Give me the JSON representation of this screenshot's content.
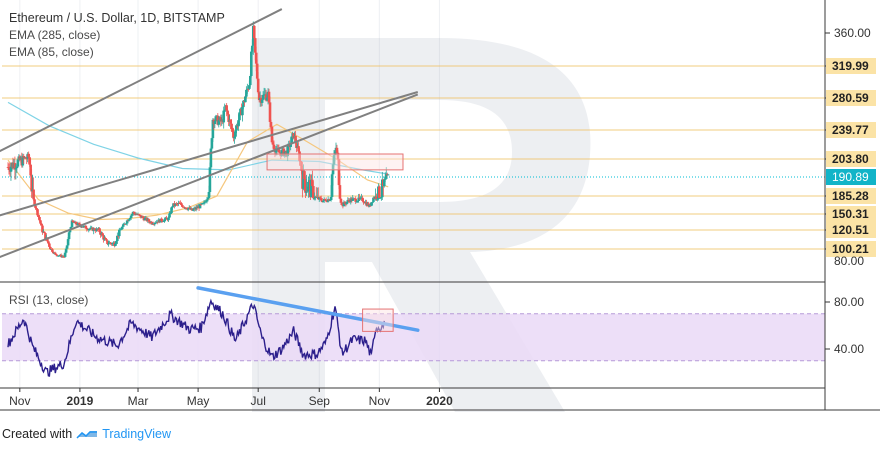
{
  "header": {
    "title": "Ethereum / U.S. Dollar, 1D, BITSTAMP",
    "ema_long": "EMA (285, close)",
    "ema_short": "EMA (85, close)"
  },
  "rsi_label": "RSI (13, close)",
  "footer": {
    "created_with": "Created with",
    "brand": "TradingView"
  },
  "colors": {
    "up": "#26a69a",
    "down": "#ef5350",
    "ema_long": "#7fd3e6",
    "ema_short": "#f5c77e",
    "channel": "#808080",
    "level": "#f0c060",
    "trendline": "#5aa0f0",
    "rsi_line": "#2c1f8c",
    "rsi_band": "#ead9f7",
    "current_price": "#00bcd4",
    "target_box": "#e57373"
  },
  "chart_data": {
    "type": "candlestick",
    "price_scale": {
      "ylim": [
        75,
        385
      ],
      "ticks": [
        360.0,
        80.0
      ]
    },
    "horizontal_levels": [
      "319.99",
      "280.59",
      "239.77",
      "203.80",
      "185.28",
      "150.31",
      "120.51",
      "100.21"
    ],
    "current_price": "190.89",
    "x_ticks": [
      "Nov",
      "2019",
      "Mar",
      "May",
      "Jul",
      "Sep",
      "Nov",
      "2020"
    ],
    "x_start": "2018-10-20",
    "ema_long_path": [
      [
        "2018-10-20",
        275
      ],
      [
        "2018-12-01",
        245
      ],
      [
        "2019-01-15",
        222
      ],
      [
        "2019-03-01",
        205
      ],
      [
        "2019-04-15",
        197
      ],
      [
        "2019-06-01",
        196
      ],
      [
        "2019-07-15",
        203
      ],
      [
        "2019-09-01",
        202
      ],
      [
        "2019-10-15",
        196
      ],
      [
        "2019-11-10",
        193
      ]
    ],
    "ema_short_path": [
      [
        "2018-10-20",
        203
      ],
      [
        "2018-11-20",
        178
      ],
      [
        "2018-12-20",
        152
      ],
      [
        "2019-01-20",
        140
      ],
      [
        "2019-02-20",
        142
      ],
      [
        "2019-03-20",
        148
      ],
      [
        "2019-04-20",
        162
      ],
      [
        "2019-05-20",
        185
      ],
      [
        "2019-06-20",
        225
      ],
      [
        "2019-07-20",
        247
      ],
      [
        "2019-08-20",
        225
      ],
      [
        "2019-09-20",
        203
      ],
      [
        "2019-10-20",
        190
      ],
      [
        "2019-11-10",
        188
      ]
    ],
    "channel_upper": [
      [
        "2018-10-01",
        207
      ],
      [
        "2019-07-25",
        389
      ]
    ],
    "channel_lower": [
      [
        "2018-10-01",
        78
      ],
      [
        "2019-12-10",
        285
      ]
    ],
    "channel_mid": [
      [
        "2018-10-01",
        142
      ],
      [
        "2019-12-10",
        288
      ]
    ],
    "target_box": {
      "from": "2019-07-10",
      "to": "2019-11-25",
      "low": 196,
      "high": 210
    },
    "anchors": [
      [
        "2018-10-20",
        198
      ],
      [
        "2018-11-10",
        206
      ],
      [
        "2018-11-14",
        183
      ],
      [
        "2018-11-24",
        120
      ],
      [
        "2018-12-07",
        90
      ],
      [
        "2018-12-16",
        86
      ],
      [
        "2018-12-24",
        135
      ],
      [
        "2019-01-10",
        123
      ],
      [
        "2019-01-20",
        121
      ],
      [
        "2019-01-28",
        107
      ],
      [
        "2019-02-05",
        106
      ],
      [
        "2019-02-24",
        153
      ],
      [
        "2019-03-15",
        134
      ],
      [
        "2019-04-01",
        142
      ],
      [
        "2019-04-05",
        167
      ],
      [
        "2019-04-12",
        170
      ],
      [
        "2019-04-25",
        157
      ],
      [
        "2019-05-07",
        170
      ],
      [
        "2019-05-13",
        194
      ],
      [
        "2019-05-16",
        254
      ],
      [
        "2019-05-25",
        250
      ],
      [
        "2019-05-29",
        268
      ],
      [
        "2019-06-06",
        232
      ],
      [
        "2019-06-14",
        265
      ],
      [
        "2019-06-22",
        300
      ],
      [
        "2019-06-26",
        360
      ],
      [
        "2019-07-02",
        280
      ],
      [
        "2019-07-11",
        285
      ],
      [
        "2019-07-15",
        225
      ],
      [
        "2019-07-20",
        212
      ],
      [
        "2019-07-30",
        212
      ],
      [
        "2019-08-06",
        234
      ],
      [
        "2019-08-15",
        192
      ],
      [
        "2019-08-25",
        185
      ],
      [
        "2019-09-05",
        176
      ],
      [
        "2019-09-12",
        180
      ],
      [
        "2019-09-18",
        218
      ],
      [
        "2019-09-24",
        167
      ],
      [
        "2019-10-02",
        178
      ],
      [
        "2019-10-15",
        178
      ],
      [
        "2019-10-22",
        165
      ],
      [
        "2019-10-26",
        182
      ],
      [
        "2019-11-03",
        185
      ],
      [
        "2019-11-10",
        190
      ]
    ],
    "rsi": {
      "ylim": [
        10,
        100
      ],
      "ticks": [
        "80.00",
        "40.00"
      ],
      "band": [
        30,
        70
      ],
      "trendline": [
        [
          "2019-05-01",
          92
        ],
        [
          "2019-12-10",
          56
        ]
      ],
      "target_box": {
        "from": "2019-10-15",
        "to": "2019-11-15",
        "low": 55,
        "high": 74
      },
      "anchors": [
        [
          "2018-10-20",
          44
        ],
        [
          "2018-11-05",
          66
        ],
        [
          "2018-11-14",
          42
        ],
        [
          "2018-11-28",
          20
        ],
        [
          "2018-12-16",
          28
        ],
        [
          "2018-12-28",
          64
        ],
        [
          "2019-01-18",
          50
        ],
        [
          "2019-02-08",
          43
        ],
        [
          "2019-02-22",
          62
        ],
        [
          "2019-03-05",
          56
        ],
        [
          "2019-03-15",
          50
        ],
        [
          "2019-04-03",
          69
        ],
        [
          "2019-04-22",
          57
        ],
        [
          "2019-05-04",
          58
        ],
        [
          "2019-05-14",
          81
        ],
        [
          "2019-05-26",
          70
        ],
        [
          "2019-06-08",
          47
        ],
        [
          "2019-06-26",
          78
        ],
        [
          "2019-07-05",
          49
        ],
        [
          "2019-07-15",
          33
        ],
        [
          "2019-07-25",
          40
        ],
        [
          "2019-08-06",
          55
        ],
        [
          "2019-08-16",
          35
        ],
        [
          "2019-08-30",
          36
        ],
        [
          "2019-09-08",
          46
        ],
        [
          "2019-09-17",
          76
        ],
        [
          "2019-09-24",
          36
        ],
        [
          "2019-10-05",
          48
        ],
        [
          "2019-10-18",
          47
        ],
        [
          "2019-10-24",
          33
        ],
        [
          "2019-10-28",
          58
        ],
        [
          "2019-11-06",
          60
        ]
      ]
    }
  }
}
